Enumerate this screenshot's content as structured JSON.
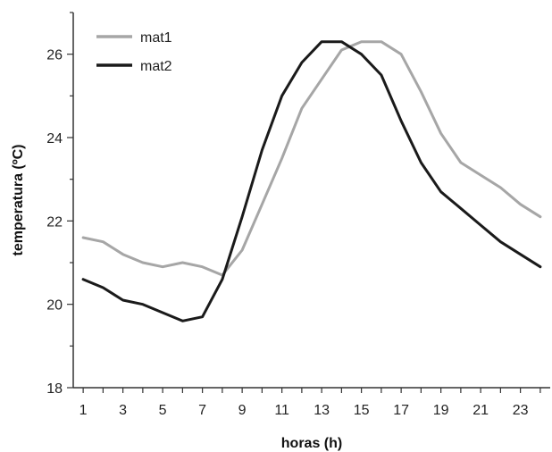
{
  "chart_data": {
    "type": "line",
    "title": "",
    "xlabel": "horas (h)",
    "ylabel": "temperatura (ºC)",
    "x": [
      1,
      2,
      3,
      4,
      5,
      6,
      7,
      8,
      9,
      10,
      11,
      12,
      13,
      14,
      15,
      16,
      17,
      18,
      19,
      20,
      21,
      22,
      23,
      24
    ],
    "xlim": [
      0.5,
      24.5
    ],
    "ylim": [
      18,
      27
    ],
    "xticks": [
      "1",
      "3",
      "5",
      "7",
      "9",
      "11",
      "13",
      "15",
      "17",
      "19",
      "21",
      "23"
    ],
    "yticks": [
      "18",
      "20",
      "22",
      "24",
      "26"
    ],
    "grid": false,
    "legend_position": "top-left",
    "series": [
      {
        "name": "mat1",
        "color": "#a6a6a6",
        "values": [
          21.6,
          21.5,
          21.2,
          21.0,
          20.9,
          21.0,
          20.9,
          20.7,
          21.3,
          22.4,
          23.5,
          24.7,
          25.4,
          26.1,
          26.3,
          26.3,
          26.0,
          25.1,
          24.1,
          23.4,
          23.1,
          22.8,
          22.4,
          22.1
        ]
      },
      {
        "name": "mat2",
        "color": "#1a1a1a",
        "values": [
          20.6,
          20.4,
          20.1,
          20.0,
          19.8,
          19.6,
          19.7,
          20.6,
          22.1,
          23.7,
          25.0,
          25.8,
          26.3,
          26.3,
          26.0,
          25.5,
          24.4,
          23.4,
          22.7,
          22.3,
          21.9,
          21.5,
          21.2,
          20.9
        ]
      }
    ]
  }
}
